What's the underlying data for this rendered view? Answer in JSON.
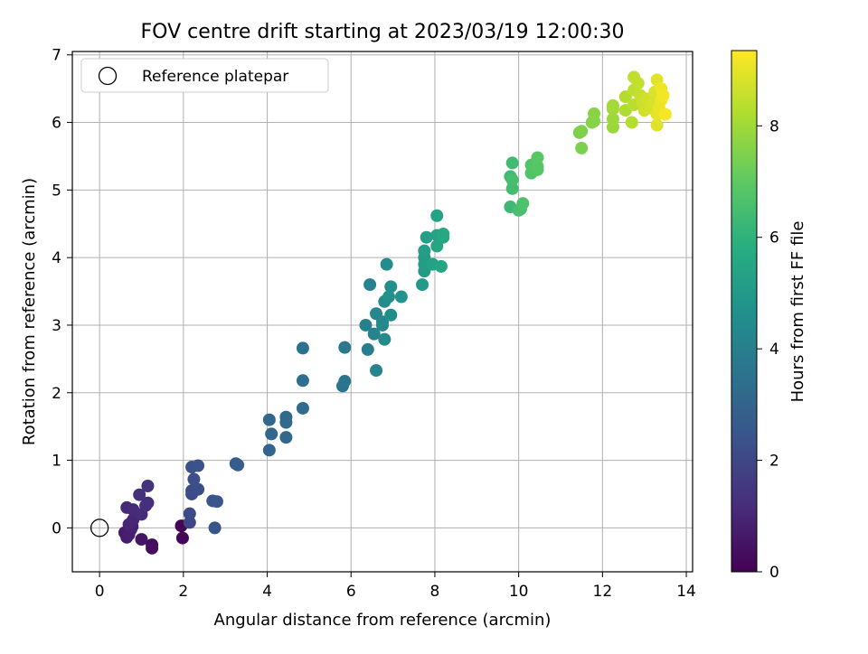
{
  "chart_data": {
    "type": "scatter",
    "title": "FOV centre drift starting at 2023/03/19 12:00:30",
    "xlabel": "Angular distance from reference (arcmin)",
    "ylabel": "Rotation from reference (arcmin)",
    "xlim": [
      -0.65,
      14.15
    ],
    "ylim": [
      -0.65,
      7.05
    ],
    "xticks": [
      0,
      2,
      4,
      6,
      8,
      10,
      12,
      14
    ],
    "yticks": [
      0,
      1,
      2,
      3,
      4,
      5,
      6,
      7
    ],
    "grid": true,
    "legend": {
      "position": "top-left",
      "entries": [
        "Reference platepar"
      ]
    },
    "reference_point": {
      "label": "Reference platepar",
      "x": 0,
      "y": 0
    },
    "colorbar": {
      "label": "Hours from first FF file",
      "colormap": "viridis",
      "range": [
        0,
        9.35
      ],
      "ticks": [
        0,
        2,
        4,
        6,
        8
      ]
    },
    "series": [
      {
        "color_by": "Hours from first FF file",
        "points": [
          [
            1.95,
            0.03,
            0.1
          ],
          [
            1.98,
            -0.15,
            0.15
          ],
          [
            1.25,
            -0.25,
            0.3
          ],
          [
            1.25,
            -0.3,
            0.35
          ],
          [
            1.0,
            -0.17,
            0.5
          ],
          [
            0.6,
            -0.07,
            0.7
          ],
          [
            0.65,
            -0.14,
            0.75
          ],
          [
            0.7,
            -0.1,
            0.8
          ],
          [
            0.75,
            -0.02,
            0.85
          ],
          [
            0.78,
            0.02,
            0.9
          ],
          [
            0.7,
            0.05,
            0.95
          ],
          [
            0.8,
            0.12,
            1.0
          ],
          [
            0.65,
            0.3,
            1.05
          ],
          [
            0.8,
            0.27,
            1.1
          ],
          [
            1.0,
            0.2,
            1.15
          ],
          [
            1.1,
            0.33,
            1.2
          ],
          [
            1.15,
            0.37,
            1.25
          ],
          [
            0.95,
            0.49,
            1.3
          ],
          [
            1.15,
            0.62,
            1.35
          ],
          [
            2.15,
            0.08,
            2.0
          ],
          [
            2.15,
            0.21,
            2.05
          ],
          [
            2.2,
            0.5,
            2.1
          ],
          [
            2.2,
            0.55,
            2.15
          ],
          [
            2.35,
            0.57,
            2.2
          ],
          [
            2.25,
            0.72,
            2.25
          ],
          [
            2.2,
            0.9,
            2.3
          ],
          [
            2.35,
            0.92,
            2.35
          ],
          [
            2.7,
            0.4,
            2.4
          ],
          [
            2.8,
            0.39,
            2.45
          ],
          [
            2.75,
            0.0,
            2.5
          ],
          [
            3.25,
            0.95,
            2.7
          ],
          [
            3.3,
            0.93,
            2.75
          ],
          [
            4.05,
            1.15,
            3.0
          ],
          [
            4.05,
            1.6,
            3.05
          ],
          [
            4.1,
            1.39,
            3.1
          ],
          [
            4.45,
            1.34,
            3.15
          ],
          [
            4.45,
            1.56,
            3.2
          ],
          [
            4.45,
            1.64,
            3.25
          ],
          [
            4.85,
            1.77,
            3.3
          ],
          [
            4.85,
            2.18,
            3.35
          ],
          [
            4.85,
            2.66,
            3.4
          ],
          [
            5.8,
            2.1,
            3.6
          ],
          [
            5.85,
            2.17,
            3.65
          ],
          [
            5.85,
            2.67,
            3.7
          ],
          [
            6.4,
            2.64,
            4.0
          ],
          [
            6.35,
            3.0,
            4.05
          ],
          [
            6.45,
            3.6,
            4.1
          ],
          [
            6.55,
            2.87,
            4.15
          ],
          [
            6.6,
            2.33,
            4.2
          ],
          [
            6.6,
            3.17,
            4.25
          ],
          [
            6.75,
            3.0,
            4.3
          ],
          [
            6.75,
            3.05,
            4.35
          ],
          [
            6.8,
            2.79,
            4.4
          ],
          [
            6.8,
            3.35,
            4.45
          ],
          [
            6.85,
            3.9,
            4.5
          ],
          [
            6.95,
            3.15,
            4.55
          ],
          [
            6.95,
            3.57,
            4.6
          ],
          [
            6.9,
            3.42,
            4.65
          ],
          [
            7.2,
            3.42,
            4.7
          ],
          [
            7.7,
            3.6,
            5.0
          ],
          [
            7.75,
            3.8,
            5.05
          ],
          [
            7.75,
            3.9,
            5.1
          ],
          [
            7.75,
            4.0,
            5.15
          ],
          [
            7.75,
            4.1,
            5.2
          ],
          [
            7.8,
            4.3,
            5.25
          ],
          [
            7.95,
            3.9,
            5.3
          ],
          [
            8.05,
            4.33,
            5.35
          ],
          [
            8.05,
            4.62,
            5.4
          ],
          [
            8.05,
            4.17,
            5.45
          ],
          [
            8.15,
            3.87,
            5.5
          ],
          [
            8.2,
            4.3,
            5.55
          ],
          [
            8.2,
            4.35,
            5.6
          ],
          [
            9.8,
            4.75,
            6.3
          ],
          [
            9.8,
            5.2,
            6.35
          ],
          [
            9.85,
            5.4,
            6.4
          ],
          [
            9.85,
            5.02,
            6.45
          ],
          [
            9.85,
            5.15,
            6.5
          ],
          [
            10.0,
            4.7,
            6.55
          ],
          [
            10.05,
            4.72,
            6.6
          ],
          [
            10.1,
            4.8,
            6.65
          ],
          [
            10.3,
            5.25,
            6.7
          ],
          [
            10.3,
            5.37,
            6.75
          ],
          [
            10.45,
            5.3,
            6.8
          ],
          [
            10.45,
            5.35,
            6.85
          ],
          [
            10.45,
            5.48,
            6.9
          ],
          [
            11.45,
            5.85,
            7.4
          ],
          [
            11.5,
            5.62,
            7.45
          ],
          [
            11.5,
            5.87,
            7.5
          ],
          [
            11.75,
            6.0,
            7.55
          ],
          [
            11.8,
            6.02,
            7.6
          ],
          [
            11.8,
            6.13,
            7.65
          ],
          [
            12.25,
            5.93,
            7.9
          ],
          [
            12.25,
            6.05,
            7.95
          ],
          [
            12.25,
            6.2,
            8.0
          ],
          [
            12.25,
            6.25,
            8.05
          ],
          [
            12.55,
            6.18,
            8.2
          ],
          [
            12.55,
            6.38,
            8.25
          ],
          [
            12.7,
            6.0,
            8.3
          ],
          [
            12.75,
            6.26,
            8.35
          ],
          [
            12.75,
            6.48,
            8.4
          ],
          [
            12.75,
            6.67,
            8.45
          ],
          [
            12.85,
            6.58,
            8.5
          ],
          [
            12.9,
            6.4,
            8.55
          ],
          [
            12.95,
            6.3,
            8.6
          ],
          [
            13.0,
            6.18,
            8.65
          ],
          [
            13.05,
            6.35,
            8.7
          ],
          [
            13.1,
            6.21,
            8.75
          ],
          [
            13.2,
            6.28,
            8.8
          ],
          [
            13.25,
            6.45,
            8.85
          ],
          [
            13.3,
            5.96,
            8.9
          ],
          [
            13.3,
            6.63,
            8.95
          ],
          [
            13.3,
            6.12,
            9.0
          ],
          [
            13.35,
            6.22,
            9.05
          ],
          [
            13.4,
            6.33,
            9.1
          ],
          [
            13.4,
            6.5,
            9.15
          ],
          [
            13.45,
            6.4,
            9.2
          ],
          [
            13.5,
            6.12,
            9.25
          ]
        ]
      }
    ]
  }
}
